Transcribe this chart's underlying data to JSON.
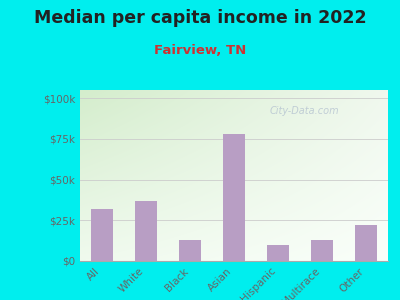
{
  "title": "Median per capita income in 2022",
  "subtitle": "Fairview, TN",
  "categories": [
    "All",
    "White",
    "Black",
    "Asian",
    "Hispanic",
    "Multirace",
    "Other"
  ],
  "values": [
    32000,
    37000,
    13000,
    78000,
    10000,
    13000,
    22000
  ],
  "bar_color": "#b89ec4",
  "background_outer": "#00EEEE",
  "background_inner_topleft": "#d4edcc",
  "background_inner_right": "#f0f8ee",
  "background_inner_top": "#e8f5e2",
  "background_inner_bottom": "#f8fff6",
  "title_fontsize": 12.5,
  "subtitle_fontsize": 9.5,
  "title_color": "#222222",
  "subtitle_color": "#cc3333",
  "tick_color": "#666666",
  "yticks": [
    0,
    25000,
    50000,
    75000,
    100000
  ],
  "ytick_labels": [
    "$0",
    "$25k",
    "$50k",
    "$75k",
    "$100k"
  ],
  "ylim": [
    0,
    105000
  ],
  "watermark": "City-Data.com"
}
